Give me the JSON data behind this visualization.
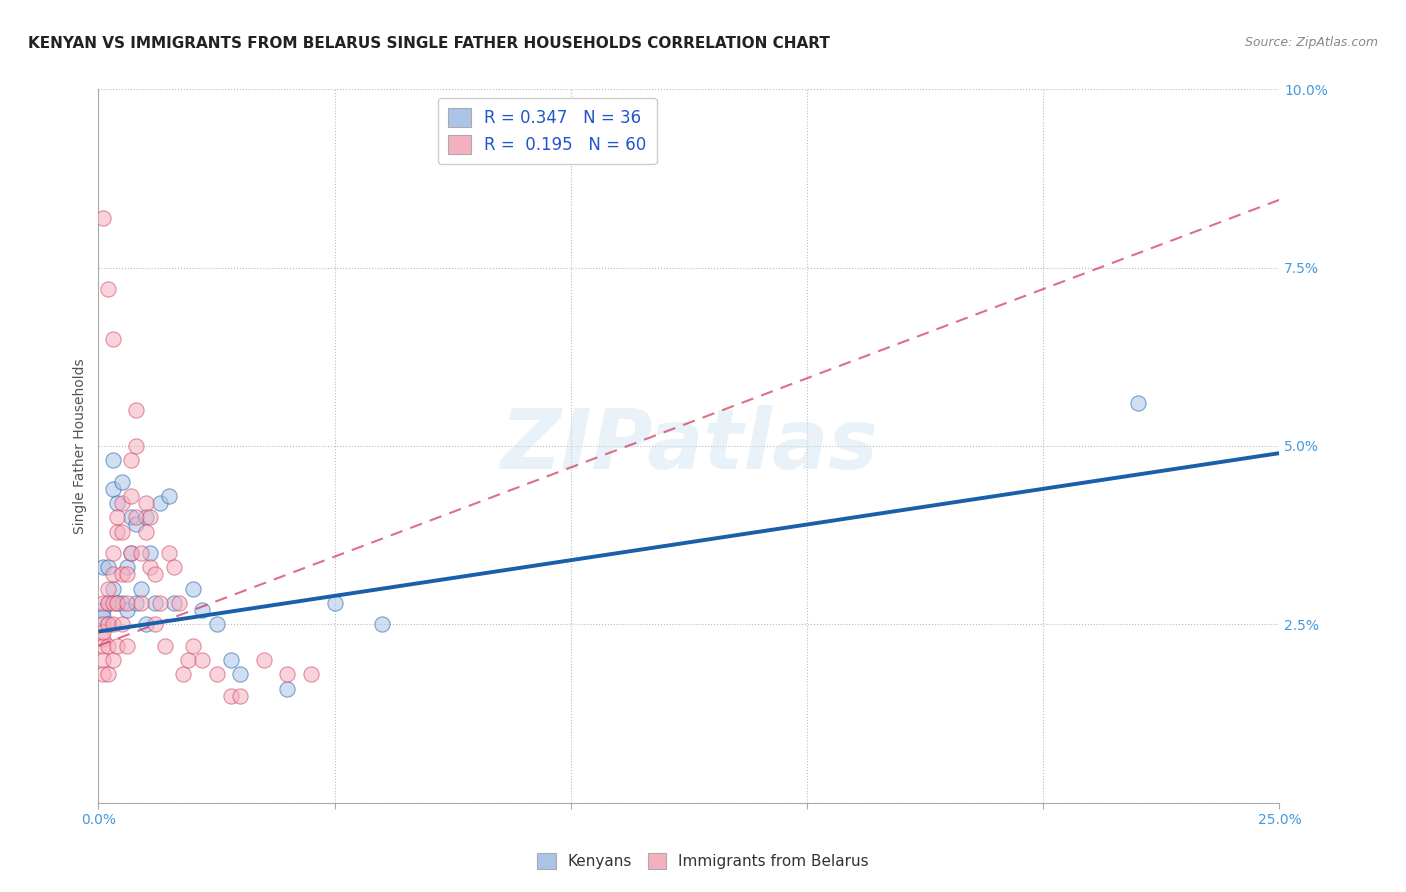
{
  "title": "KENYAN VS IMMIGRANTS FROM BELARUS SINGLE FATHER HOUSEHOLDS CORRELATION CHART",
  "source": "Source: ZipAtlas.com",
  "ylabel": "Single Father Households",
  "xlim": [
    0.0,
    0.25
  ],
  "ylim": [
    0.0,
    0.1
  ],
  "kenyan_R": 0.347,
  "kenyan_N": 36,
  "belarus_R": 0.195,
  "belarus_N": 60,
  "kenyan_color": "#aac4e8",
  "kenya_line_color": "#1a5faa",
  "belarus_color": "#f5b0c0",
  "belarus_line_color": "#d04060",
  "kenyan_line_x0": 0.0,
  "kenyan_line_y0": 0.024,
  "kenyan_line_x1": 0.25,
  "kenyan_line_y1": 0.049,
  "belarus_line_x0": 0.0,
  "belarus_line_y0": 0.022,
  "belarus_line_x1": 0.08,
  "belarus_line_y1": 0.042,
  "kenyan_x": [
    0.001,
    0.001,
    0.001,
    0.002,
    0.002,
    0.003,
    0.003,
    0.003,
    0.004,
    0.004,
    0.005,
    0.005,
    0.006,
    0.006,
    0.007,
    0.007,
    0.008,
    0.008,
    0.009,
    0.01,
    0.01,
    0.011,
    0.012,
    0.013,
    0.015,
    0.016,
    0.02,
    0.022,
    0.025,
    0.028,
    0.03,
    0.04,
    0.05,
    0.06,
    0.22,
    0.002
  ],
  "kenyan_y": [
    0.027,
    0.026,
    0.033,
    0.028,
    0.025,
    0.048,
    0.044,
    0.03,
    0.042,
    0.028,
    0.045,
    0.028,
    0.033,
    0.027,
    0.04,
    0.035,
    0.028,
    0.039,
    0.03,
    0.04,
    0.025,
    0.035,
    0.028,
    0.042,
    0.043,
    0.028,
    0.03,
    0.027,
    0.025,
    0.02,
    0.018,
    0.016,
    0.028,
    0.025,
    0.056,
    0.033
  ],
  "belarus_x": [
    0.001,
    0.001,
    0.001,
    0.001,
    0.001,
    0.001,
    0.001,
    0.002,
    0.002,
    0.002,
    0.002,
    0.002,
    0.003,
    0.003,
    0.003,
    0.003,
    0.003,
    0.004,
    0.004,
    0.004,
    0.004,
    0.005,
    0.005,
    0.005,
    0.005,
    0.006,
    0.006,
    0.006,
    0.007,
    0.007,
    0.007,
    0.008,
    0.008,
    0.008,
    0.009,
    0.009,
    0.01,
    0.01,
    0.011,
    0.011,
    0.012,
    0.012,
    0.013,
    0.014,
    0.015,
    0.016,
    0.017,
    0.018,
    0.019,
    0.02,
    0.022,
    0.025,
    0.028,
    0.03,
    0.035,
    0.04,
    0.045,
    0.001,
    0.002,
    0.003
  ],
  "belarus_y": [
    0.025,
    0.023,
    0.022,
    0.02,
    0.018,
    0.028,
    0.024,
    0.03,
    0.028,
    0.025,
    0.022,
    0.018,
    0.035,
    0.032,
    0.028,
    0.025,
    0.02,
    0.04,
    0.038,
    0.028,
    0.022,
    0.042,
    0.038,
    0.032,
    0.025,
    0.032,
    0.028,
    0.022,
    0.048,
    0.043,
    0.035,
    0.055,
    0.05,
    0.04,
    0.035,
    0.028,
    0.042,
    0.038,
    0.04,
    0.033,
    0.032,
    0.025,
    0.028,
    0.022,
    0.035,
    0.033,
    0.028,
    0.018,
    0.02,
    0.022,
    0.02,
    0.018,
    0.015,
    0.015,
    0.02,
    0.018,
    0.018,
    0.082,
    0.072,
    0.065
  ],
  "legend_entries": [
    "Kenyans",
    "Immigrants from Belarus"
  ],
  "background_color": "#ffffff",
  "grid_color": "#cccccc",
  "watermark_text": "ZIPatlas",
  "title_fontsize": 11,
  "label_fontsize": 10,
  "tick_fontsize": 10,
  "tick_color": "#4499dd"
}
